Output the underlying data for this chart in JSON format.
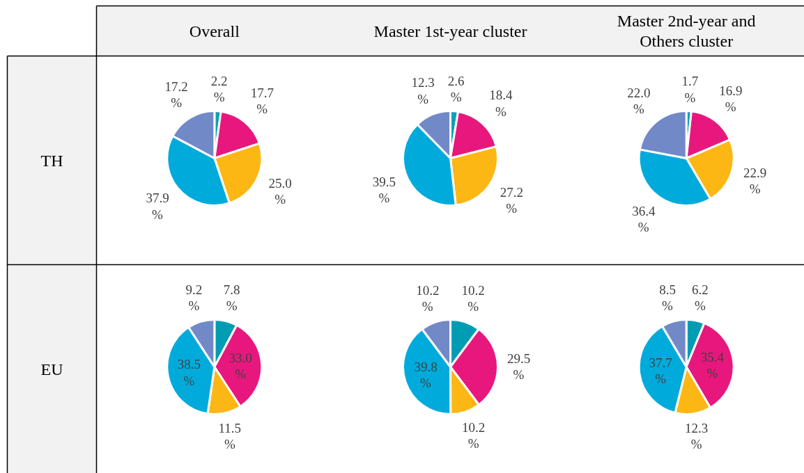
{
  "chart_data": [
    {
      "type": "pie",
      "title": "Overall",
      "ylabel": "TH",
      "categories": [
        null,
        null,
        null,
        null,
        null
      ],
      "values": [
        2.2,
        17.7,
        25.0,
        37.9,
        17.2
      ],
      "colors": [
        "#0fa0b6",
        "#e8177e",
        "#fdb714",
        "#00abdb",
        "#7289c8"
      ],
      "value_labels": [
        "2.2 %",
        "17.7 %",
        "25.0 %",
        "37.9 %",
        "17.2 %"
      ]
    },
    {
      "type": "pie",
      "title": "Master 1st-year cluster",
      "categories": [
        null,
        null,
        null,
        null,
        null
      ],
      "values": [
        2.6,
        18.4,
        27.2,
        39.5,
        12.3
      ],
      "colors": [
        "#0fa0b6",
        "#e8177e",
        "#fdb714",
        "#00abdb",
        "#7289c8"
      ],
      "value_labels": [
        "2.6 %",
        "18.4 %",
        "27.2 %",
        "39.5 %",
        "12.3 %"
      ]
    },
    {
      "type": "pie",
      "title": "Master 2nd-year and Others cluster",
      "categories": [
        null,
        null,
        null,
        null,
        null
      ],
      "values": [
        1.7,
        16.9,
        22.9,
        36.4,
        22.0
      ],
      "colors": [
        "#0fa0b6",
        "#e8177e",
        "#fdb714",
        "#00abdb",
        "#7289c8"
      ],
      "value_labels": [
        "1.7 %",
        "16.9 %",
        "22.9 %",
        "36.4 %",
        "22.0 %"
      ]
    },
    {
      "type": "pie",
      "ylabel": "EU",
      "categories": [
        null,
        null,
        null,
        null,
        null
      ],
      "values": [
        7.8,
        33.0,
        11.5,
        38.5,
        9.2
      ],
      "colors": [
        "#009cb4",
        "#e8177e",
        "#fdb714",
        "#00abdb",
        "#7289c8"
      ],
      "value_labels": [
        "7.8 %",
        "33.0 %",
        "11.5 %",
        "38.5 %",
        "9.2 %"
      ]
    },
    {
      "type": "pie",
      "categories": [
        null,
        null,
        null,
        null,
        null
      ],
      "values": [
        10.2,
        29.5,
        10.2,
        39.8,
        10.2
      ],
      "colors": [
        "#009cb4",
        "#e8177e",
        "#fdb714",
        "#00abdb",
        "#7289c8"
      ],
      "value_labels": [
        "10.2 %",
        "29.5 %",
        "10.2 %",
        "39.8 %",
        "10.2 %"
      ]
    },
    {
      "type": "pie",
      "categories": [
        null,
        null,
        null,
        null,
        null
      ],
      "values": [
        6.2,
        35.4,
        12.3,
        37.7,
        8.5
      ],
      "colors": [
        "#009cb4",
        "#e8177e",
        "#fdb714",
        "#00abdb",
        "#7289c8"
      ],
      "value_labels": [
        "6.2 %",
        "35.4 %",
        "12.3 %",
        "37.7 %",
        "8.5 %"
      ]
    }
  ]
}
